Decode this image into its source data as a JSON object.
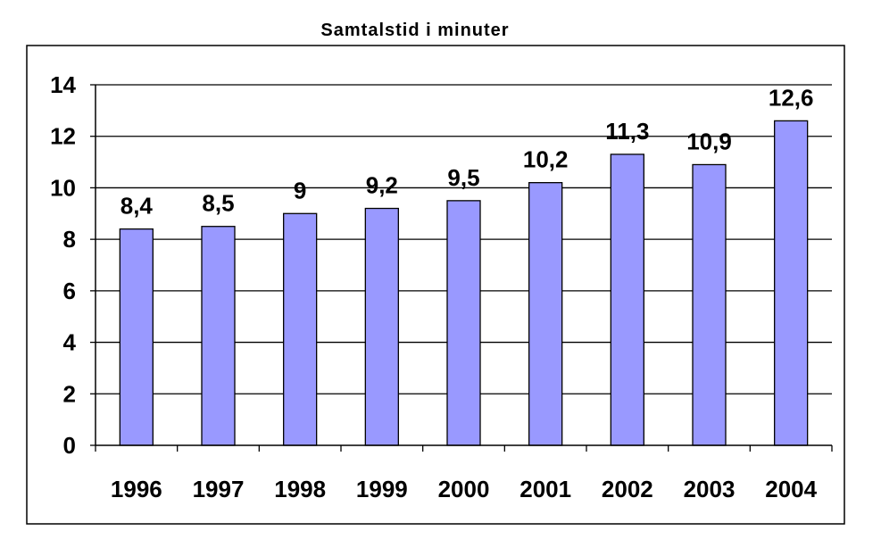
{
  "chart_data": {
    "type": "bar",
    "title": "Samtalstid i minuter",
    "xlabel": "",
    "ylabel": "",
    "categories": [
      "1996",
      "1997",
      "1998",
      "1999",
      "2000",
      "2001",
      "2002",
      "2003",
      "2004"
    ],
    "values": [
      8.4,
      8.5,
      9,
      9.2,
      9.5,
      10.2,
      11.3,
      10.9,
      12.6
    ],
    "data_labels": [
      "8,4",
      "8,5",
      "9",
      "9,2",
      "9,5",
      "10,2",
      "11,3",
      "10,9",
      "12,6"
    ],
    "ylim": [
      0,
      14
    ],
    "yticks": [
      0,
      2,
      4,
      6,
      8,
      10,
      12,
      14
    ],
    "grid": true,
    "legend": "none",
    "bar_color": "#9999ff",
    "bar_border_color": "#000000"
  }
}
